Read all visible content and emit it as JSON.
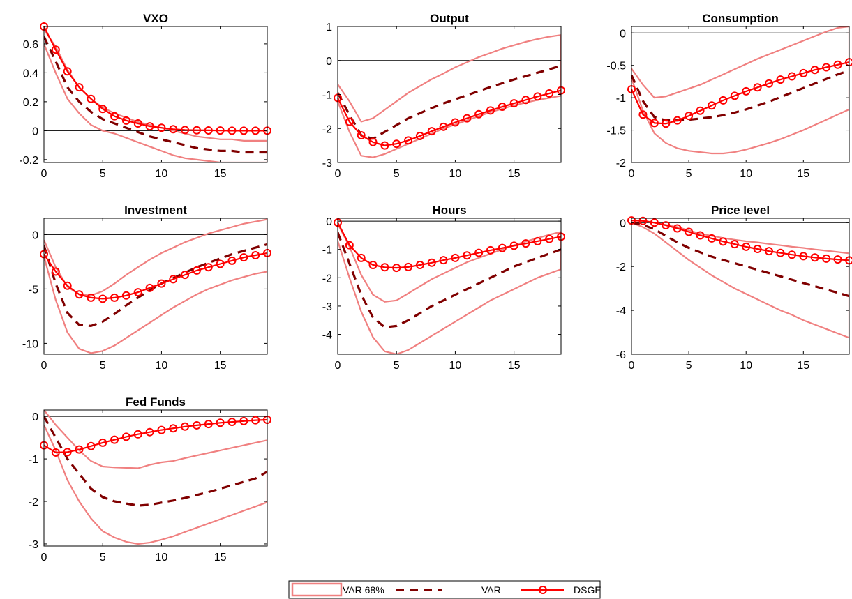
{
  "legend": {
    "band_label": "VAR 68%",
    "var_label": "VAR",
    "dsge_label": "DSGE"
  },
  "colors": {
    "band": "#f08080",
    "var": "#800000",
    "dsge": "#ff0000",
    "zero_line": "#000000"
  },
  "chart_data": [
    {
      "type": "line",
      "title": "VXO",
      "xlim": [
        0,
        19
      ],
      "ylim": [
        -0.22,
        0.72
      ],
      "xticks": [
        0,
        5,
        10,
        15
      ],
      "yticks": [
        -0.2,
        0,
        0.2,
        0.4,
        0.6
      ],
      "ytick_labels": [
        "-0.2",
        "0",
        "0.2",
        "0.4",
        "0.6"
      ],
      "series": [
        {
          "name": "VAR 68% lower",
          "values": [
            0.6,
            0.4,
            0.22,
            0.12,
            0.04,
            0.0,
            -0.02,
            -0.05,
            -0.08,
            -0.11,
            -0.14,
            -0.17,
            -0.19,
            -0.2,
            -0.21,
            -0.22,
            -0.22,
            -0.22,
            -0.22,
            -0.22
          ]
        },
        {
          "name": "VAR 68% upper",
          "values": [
            0.7,
            0.58,
            0.42,
            0.3,
            0.22,
            0.16,
            0.12,
            0.09,
            0.06,
            0.04,
            0.02,
            0.0,
            -0.02,
            -0.04,
            -0.05,
            -0.06,
            -0.06,
            -0.07,
            -0.07,
            -0.07
          ]
        },
        {
          "name": "VAR",
          "values": [
            0.65,
            0.48,
            0.3,
            0.2,
            0.13,
            0.08,
            0.05,
            0.02,
            -0.01,
            -0.04,
            -0.06,
            -0.08,
            -0.1,
            -0.12,
            -0.13,
            -0.14,
            -0.14,
            -0.15,
            -0.15,
            -0.15
          ]
        },
        {
          "name": "DSGE",
          "values": [
            0.72,
            0.56,
            0.41,
            0.3,
            0.22,
            0.15,
            0.1,
            0.07,
            0.05,
            0.03,
            0.02,
            0.01,
            0.005,
            0.003,
            0.002,
            0.001,
            0.0,
            0.0,
            0.0,
            0.0
          ]
        }
      ]
    },
    {
      "type": "line",
      "title": "Output",
      "xlim": [
        0,
        19
      ],
      "ylim": [
        -3,
        1
      ],
      "xticks": [
        0,
        5,
        10,
        15
      ],
      "yticks": [
        -3,
        -2,
        -1,
        0,
        1
      ],
      "ytick_labels": [
        "-3",
        "-2",
        "-1",
        "0",
        "1"
      ],
      "series": [
        {
          "name": "VAR 68% lower",
          "values": [
            -1.2,
            -2.1,
            -2.8,
            -2.85,
            -2.75,
            -2.6,
            -2.45,
            -2.3,
            -2.15,
            -2.0,
            -1.88,
            -1.76,
            -1.64,
            -1.52,
            -1.42,
            -1.32,
            -1.24,
            -1.16,
            -1.1,
            -1.04
          ]
        },
        {
          "name": "VAR 68% upper",
          "values": [
            -0.7,
            -1.2,
            -1.8,
            -1.7,
            -1.45,
            -1.2,
            -0.95,
            -0.75,
            -0.55,
            -0.38,
            -0.2,
            -0.05,
            0.1,
            0.22,
            0.35,
            0.45,
            0.55,
            0.63,
            0.7,
            0.75
          ]
        },
        {
          "name": "VAR",
          "values": [
            -0.95,
            -1.6,
            -2.2,
            -2.3,
            -2.1,
            -1.9,
            -1.7,
            -1.55,
            -1.4,
            -1.26,
            -1.14,
            -1.02,
            -0.9,
            -0.78,
            -0.67,
            -0.56,
            -0.46,
            -0.36,
            -0.26,
            -0.15
          ]
        },
        {
          "name": "DSGE",
          "values": [
            -1.1,
            -1.8,
            -2.2,
            -2.4,
            -2.5,
            -2.45,
            -2.35,
            -2.22,
            -2.08,
            -1.95,
            -1.82,
            -1.7,
            -1.58,
            -1.47,
            -1.36,
            -1.26,
            -1.16,
            -1.06,
            -0.97,
            -0.88
          ]
        }
      ]
    },
    {
      "type": "line",
      "title": "Consumption",
      "xlim": [
        0,
        19
      ],
      "ylim": [
        -2,
        0.1
      ],
      "xticks": [
        0,
        5,
        10,
        15
      ],
      "yticks": [
        -2,
        -1.5,
        -1,
        -0.5,
        0
      ],
      "ytick_labels": [
        "-2",
        "-1.5",
        "-1",
        "-0.5",
        "0"
      ],
      "series": [
        {
          "name": "VAR 68% lower",
          "values": [
            -0.7,
            -1.2,
            -1.55,
            -1.7,
            -1.78,
            -1.82,
            -1.84,
            -1.86,
            -1.86,
            -1.84,
            -1.8,
            -1.75,
            -1.7,
            -1.64,
            -1.57,
            -1.5,
            -1.42,
            -1.34,
            -1.26,
            -1.18
          ]
        },
        {
          "name": "VAR 68% upper",
          "values": [
            -0.55,
            -0.8,
            -1.0,
            -0.98,
            -0.92,
            -0.86,
            -0.8,
            -0.72,
            -0.64,
            -0.56,
            -0.48,
            -0.4,
            -0.33,
            -0.26,
            -0.19,
            -0.12,
            -0.05,
            0.02,
            0.08,
            0.1
          ]
        },
        {
          "name": "VAR",
          "values": [
            -0.65,
            -1.05,
            -1.3,
            -1.35,
            -1.35,
            -1.34,
            -1.32,
            -1.3,
            -1.27,
            -1.23,
            -1.18,
            -1.12,
            -1.06,
            -0.99,
            -0.92,
            -0.85,
            -0.78,
            -0.71,
            -0.64,
            -0.58
          ]
        },
        {
          "name": "DSGE",
          "values": [
            -0.87,
            -1.26,
            -1.39,
            -1.4,
            -1.35,
            -1.28,
            -1.2,
            -1.12,
            -1.04,
            -0.97,
            -0.9,
            -0.84,
            -0.78,
            -0.72,
            -0.67,
            -0.62,
            -0.57,
            -0.53,
            -0.49,
            -0.45
          ]
        }
      ]
    },
    {
      "type": "line",
      "title": "Investment",
      "xlim": [
        0,
        19
      ],
      "ylim": [
        -11,
        1.5
      ],
      "xticks": [
        0,
        5,
        10,
        15
      ],
      "yticks": [
        -10,
        -5,
        0
      ],
      "ytick_labels": [
        "-10",
        "-5",
        "0"
      ],
      "series": [
        {
          "name": "VAR 68% lower",
          "values": [
            -2.0,
            -6.0,
            -9.0,
            -10.5,
            -10.9,
            -10.7,
            -10.2,
            -9.5,
            -8.8,
            -8.1,
            -7.4,
            -6.7,
            -6.1,
            -5.5,
            -5.0,
            -4.6,
            -4.2,
            -3.9,
            -3.6,
            -3.4
          ]
        },
        {
          "name": "VAR 68% upper",
          "values": [
            -0.5,
            -3.0,
            -4.8,
            -5.5,
            -5.6,
            -5.2,
            -4.5,
            -3.7,
            -3.0,
            -2.3,
            -1.7,
            -1.2,
            -0.7,
            -0.3,
            0.1,
            0.4,
            0.7,
            1.0,
            1.2,
            1.4
          ]
        },
        {
          "name": "VAR",
          "values": [
            -1.0,
            -4.5,
            -7.2,
            -8.3,
            -8.4,
            -8.0,
            -7.3,
            -6.5,
            -5.8,
            -5.1,
            -4.5,
            -4.0,
            -3.5,
            -3.0,
            -2.6,
            -2.2,
            -1.8,
            -1.5,
            -1.2,
            -0.9
          ]
        },
        {
          "name": "DSGE",
          "values": [
            -1.8,
            -3.4,
            -4.7,
            -5.5,
            -5.8,
            -5.9,
            -5.8,
            -5.6,
            -5.3,
            -4.9,
            -4.5,
            -4.1,
            -3.7,
            -3.3,
            -3.0,
            -2.7,
            -2.4,
            -2.1,
            -1.9,
            -1.7
          ]
        }
      ]
    },
    {
      "type": "line",
      "title": "Hours",
      "xlim": [
        0,
        19
      ],
      "ylim": [
        -4.7,
        0.1
      ],
      "xticks": [
        0,
        5,
        10,
        15
      ],
      "yticks": [
        -4,
        -3,
        -2,
        -1,
        0
      ],
      "ytick_labels": [
        "-4",
        "-3",
        "-2",
        "-1",
        "0"
      ],
      "series": [
        {
          "name": "VAR 68% lower",
          "values": [
            -0.7,
            -2.0,
            -3.2,
            -4.1,
            -4.6,
            -4.7,
            -4.55,
            -4.3,
            -4.05,
            -3.8,
            -3.55,
            -3.3,
            -3.05,
            -2.8,
            -2.6,
            -2.4,
            -2.2,
            -2.0,
            -1.85,
            -1.7
          ]
        },
        {
          "name": "VAR 68% upper",
          "values": [
            -0.1,
            -0.9,
            -1.9,
            -2.6,
            -2.85,
            -2.8,
            -2.55,
            -2.3,
            -2.05,
            -1.85,
            -1.65,
            -1.45,
            -1.3,
            -1.15,
            -1.0,
            -0.85,
            -0.72,
            -0.6,
            -0.48,
            -0.38
          ]
        },
        {
          "name": "VAR",
          "values": [
            -0.4,
            -1.5,
            -2.6,
            -3.4,
            -3.75,
            -3.7,
            -3.5,
            -3.25,
            -3.0,
            -2.8,
            -2.6,
            -2.4,
            -2.2,
            -2.0,
            -1.8,
            -1.6,
            -1.45,
            -1.3,
            -1.15,
            -1.0
          ]
        },
        {
          "name": "DSGE",
          "values": [
            -0.05,
            -0.85,
            -1.3,
            -1.55,
            -1.63,
            -1.65,
            -1.62,
            -1.55,
            -1.47,
            -1.38,
            -1.3,
            -1.21,
            -1.12,
            -1.03,
            -0.95,
            -0.87,
            -0.79,
            -0.71,
            -0.63,
            -0.55
          ]
        }
      ]
    },
    {
      "type": "line",
      "title": "Price level",
      "xlim": [
        0,
        19
      ],
      "ylim": [
        -6,
        0.2
      ],
      "xticks": [
        0,
        5,
        10,
        15
      ],
      "yticks": [
        -6,
        -4,
        -2,
        0
      ],
      "ytick_labels": [
        "-6",
        "-4",
        "-2",
        "0"
      ],
      "series": [
        {
          "name": "VAR 68% lower",
          "values": [
            0.0,
            -0.2,
            -0.5,
            -0.9,
            -1.3,
            -1.7,
            -2.05,
            -2.4,
            -2.7,
            -3.0,
            -3.25,
            -3.5,
            -3.75,
            -4.0,
            -4.2,
            -4.45,
            -4.65,
            -4.85,
            -5.05,
            -5.25
          ]
        },
        {
          "name": "VAR 68% upper",
          "values": [
            0.1,
            0.1,
            0.0,
            -0.1,
            -0.2,
            -0.35,
            -0.5,
            -0.6,
            -0.7,
            -0.78,
            -0.85,
            -0.9,
            -0.97,
            -1.03,
            -1.1,
            -1.15,
            -1.22,
            -1.28,
            -1.34,
            -1.4
          ]
        },
        {
          "name": "VAR",
          "values": [
            0.0,
            -0.1,
            -0.3,
            -0.6,
            -0.9,
            -1.15,
            -1.35,
            -1.55,
            -1.7,
            -1.85,
            -2.0,
            -2.15,
            -2.3,
            -2.45,
            -2.6,
            -2.75,
            -2.9,
            -3.05,
            -3.2,
            -3.35
          ]
        },
        {
          "name": "DSGE",
          "values": [
            0.1,
            0.08,
            0.0,
            -0.12,
            -0.26,
            -0.42,
            -0.58,
            -0.72,
            -0.86,
            -0.98,
            -1.1,
            -1.2,
            -1.3,
            -1.38,
            -1.46,
            -1.53,
            -1.59,
            -1.64,
            -1.68,
            -1.72
          ]
        }
      ]
    },
    {
      "type": "line",
      "title": "Fed Funds",
      "xlim": [
        0,
        19
      ],
      "ylim": [
        -3.05,
        0.15
      ],
      "xticks": [
        0,
        5,
        10,
        15
      ],
      "yticks": [
        -3,
        -2,
        -1,
        0
      ],
      "ytick_labels": [
        "-3",
        "-2",
        "-1",
        "0"
      ],
      "series": [
        {
          "name": "VAR 68% lower",
          "values": [
            -0.2,
            -0.8,
            -1.5,
            -2.0,
            -2.4,
            -2.7,
            -2.85,
            -2.95,
            -3.0,
            -2.97,
            -2.9,
            -2.82,
            -2.72,
            -2.62,
            -2.52,
            -2.42,
            -2.32,
            -2.22,
            -2.12,
            -2.02
          ]
        },
        {
          "name": "VAR 68% upper",
          "values": [
            0.15,
            -0.2,
            -0.5,
            -0.8,
            -1.05,
            -1.18,
            -1.2,
            -1.21,
            -1.22,
            -1.14,
            -1.08,
            -1.05,
            -0.98,
            -0.92,
            -0.86,
            -0.8,
            -0.74,
            -0.68,
            -0.62,
            -0.56
          ]
        },
        {
          "name": "VAR",
          "values": [
            0.0,
            -0.5,
            -1.0,
            -1.35,
            -1.7,
            -1.9,
            -2.0,
            -2.05,
            -2.1,
            -2.08,
            -2.03,
            -1.98,
            -1.92,
            -1.85,
            -1.78,
            -1.7,
            -1.62,
            -1.54,
            -1.46,
            -1.3
          ]
        },
        {
          "name": "DSGE",
          "values": [
            -0.68,
            -0.85,
            -0.84,
            -0.78,
            -0.7,
            -0.62,
            -0.55,
            -0.48,
            -0.42,
            -0.37,
            -0.32,
            -0.28,
            -0.24,
            -0.21,
            -0.18,
            -0.15,
            -0.13,
            -0.11,
            -0.09,
            -0.08
          ]
        }
      ]
    }
  ]
}
